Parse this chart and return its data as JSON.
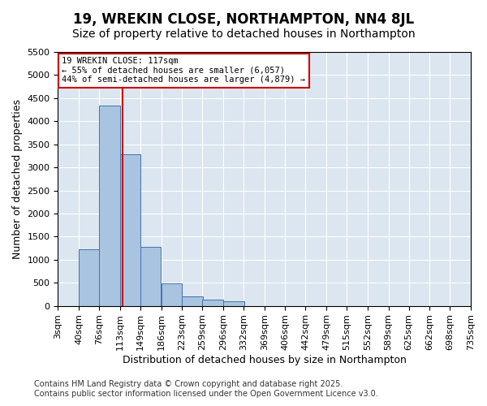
{
  "title": "19, WREKIN CLOSE, NORTHAMPTON, NN4 8JL",
  "subtitle": "Size of property relative to detached houses in Northampton",
  "xlabel": "Distribution of detached houses by size in Northampton",
  "ylabel": "Number of detached properties",
  "footer1": "Contains HM Land Registry data © Crown copyright and database right 2025.",
  "footer2": "Contains public sector information licensed under the Open Government Licence v3.0.",
  "annotation_line1": "19 WREKIN CLOSE: 117sqm",
  "annotation_line2": "← 55% of detached houses are smaller (6,057)",
  "annotation_line3": "44% of semi-detached houses are larger (4,879) →",
  "property_size": 117,
  "bar_bins": [
    3,
    40,
    76,
    113,
    149,
    186,
    223,
    259,
    296,
    332,
    369,
    406,
    442,
    479,
    515,
    552,
    589,
    625,
    662,
    698,
    735
  ],
  "bar_heights": [
    0,
    1230,
    4330,
    3280,
    1270,
    490,
    200,
    130,
    100,
    0,
    0,
    0,
    0,
    0,
    0,
    0,
    0,
    0,
    0,
    0
  ],
  "bar_color": "#a8c4e0",
  "bar_edge_color": "#4472a8",
  "vline_color": "#cc0000",
  "vline_x": 117,
  "annotation_box_color": "#cc0000",
  "bg_color": "#dce6f0",
  "ylim": [
    0,
    5500
  ],
  "yticks": [
    0,
    500,
    1000,
    1500,
    2000,
    2500,
    3000,
    3500,
    4000,
    4500,
    5000,
    5500
  ],
  "title_fontsize": 12,
  "subtitle_fontsize": 10,
  "axis_label_fontsize": 9,
  "tick_fontsize": 8,
  "footer_fontsize": 7
}
